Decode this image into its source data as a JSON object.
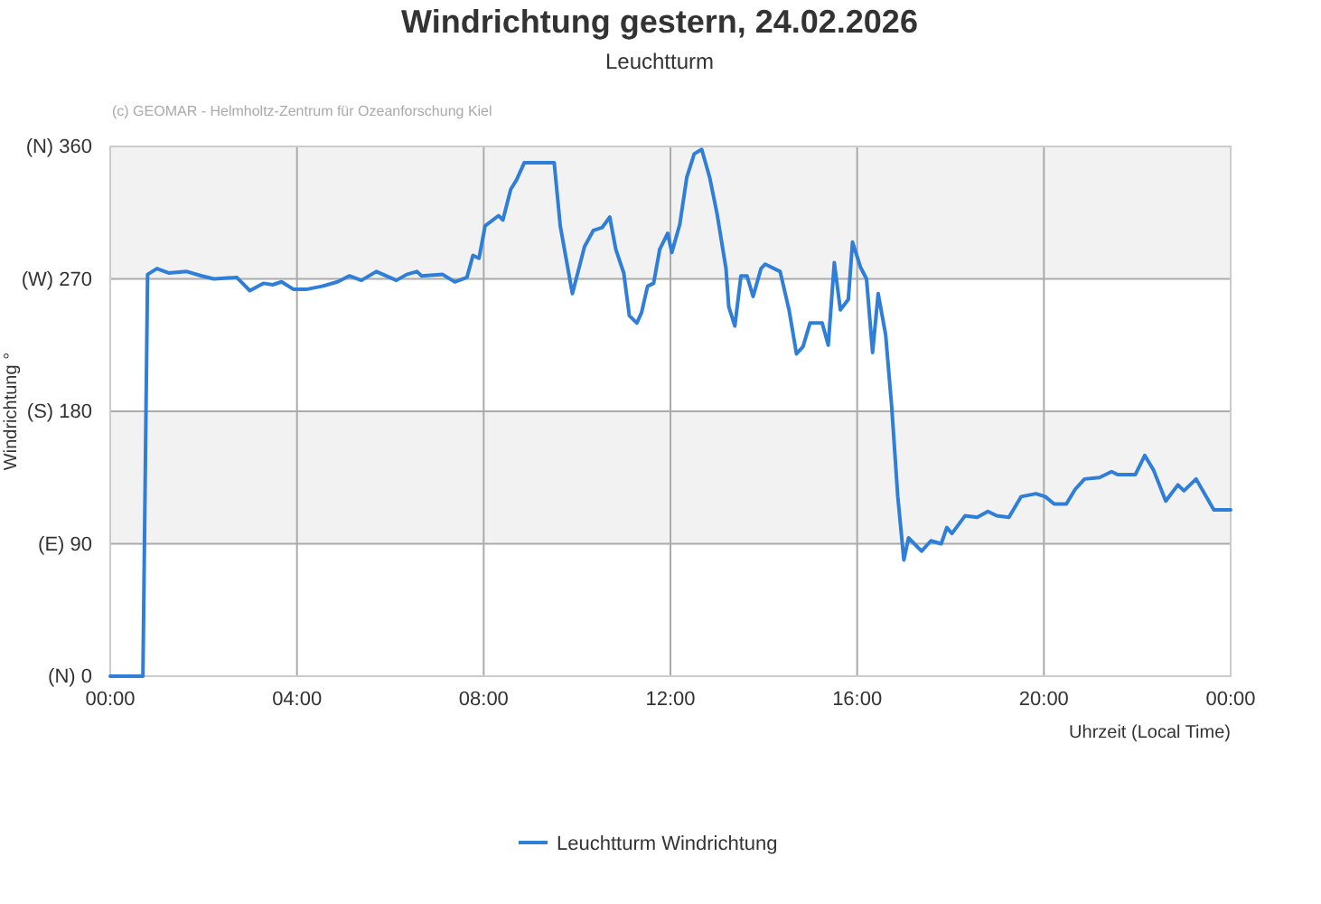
{
  "chart_data": {
    "type": "line",
    "title": "Windrichtung gestern, 24.02.2026",
    "subtitle": "Leuchtturm",
    "xlabel": "Uhrzeit (Local Time)",
    "ylabel": "Windrichtung °",
    "annotations": [
      "(c) GEOMAR - Helmholtz-Zentrum für Ozeanforschung Kiel"
    ],
    "x": [
      0,
      0.7,
      0.8,
      1.0,
      1.25,
      1.64,
      1.96,
      2.22,
      2.71,
      2.99,
      3.28,
      3.48,
      3.67,
      3.92,
      4.22,
      4.54,
      4.87,
      5.12,
      5.38,
      5.7,
      6.13,
      6.35,
      6.57,
      6.67,
      7.12,
      7.38,
      7.64,
      7.77,
      7.9,
      8.03,
      8.32,
      8.41,
      8.58,
      8.7,
      8.87,
      9.51,
      9.64,
      9.9,
      10.16,
      10.35,
      10.54,
      10.7,
      10.83,
      11.0,
      11.12,
      11.28,
      11.38,
      11.51,
      11.64,
      11.77,
      11.94,
      12.03,
      12.2,
      12.35,
      12.51,
      12.67,
      12.84,
      13.0,
      13.19,
      13.25,
      13.38,
      13.51,
      13.64,
      13.77,
      13.94,
      14.03,
      14.35,
      14.54,
      14.7,
      14.84,
      14.99,
      15.25,
      15.38,
      15.51,
      15.64,
      15.81,
      15.9,
      16.07,
      16.2,
      16.33,
      16.45,
      16.61,
      16.74,
      16.87,
      17.0,
      17.1,
      17.38,
      17.58,
      17.8,
      17.92,
      18.03,
      18.31,
      18.57,
      18.8,
      18.99,
      19.25,
      19.51,
      19.83,
      20.03,
      20.22,
      20.48,
      20.67,
      20.87,
      21.19,
      21.45,
      21.58,
      21.96,
      22.16,
      22.35,
      22.61,
      22.87,
      23.0,
      23.26,
      23.64,
      24.0
    ],
    "series": [
      {
        "name": "Leuchtturm Windrichtung",
        "color": "#2f7ed8",
        "values": [
          0,
          0,
          273,
          277,
          274,
          275,
          272,
          270,
          271,
          262,
          267,
          266,
          268,
          263,
          263,
          265,
          268,
          272,
          269,
          275,
          269,
          273,
          275,
          272,
          273,
          268,
          271,
          286,
          284,
          306,
          313,
          310,
          331,
          337,
          349,
          349,
          306,
          260,
          292,
          303,
          305,
          312,
          290,
          274,
          245,
          240,
          247,
          265,
          267,
          290,
          301,
          288,
          307,
          339,
          355,
          358,
          339,
          314,
          277,
          251,
          238,
          272,
          272,
          258,
          277,
          280,
          275,
          249,
          219,
          224,
          240,
          240,
          225,
          281,
          249,
          256,
          295,
          278,
          270,
          220,
          260,
          232,
          183,
          122,
          79,
          94,
          85,
          92,
          90,
          101,
          97,
          109,
          108,
          112,
          109,
          108,
          122,
          124,
          122,
          117,
          117,
          127,
          134,
          135,
          139,
          137,
          137,
          150,
          140,
          119,
          130,
          126,
          134,
          113,
          113
        ]
      }
    ],
    "xlim": [
      0,
      24
    ],
    "xticks": [
      {
        "value": 0,
        "label": "00:00"
      },
      {
        "value": 4,
        "label": "04:00"
      },
      {
        "value": 8,
        "label": "08:00"
      },
      {
        "value": 12,
        "label": "12:00"
      },
      {
        "value": 16,
        "label": "16:00"
      },
      {
        "value": 20,
        "label": "20:00"
      },
      {
        "value": 24,
        "label": "00:00"
      }
    ],
    "ylim": [
      0,
      360
    ],
    "yticks": [
      {
        "value": 0,
        "label": "(N) 0"
      },
      {
        "value": 90,
        "label": "(E) 90"
      },
      {
        "value": 180,
        "label": "(S) 180"
      },
      {
        "value": 270,
        "label": "(W) 270"
      },
      {
        "value": 360,
        "label": "(N) 360"
      }
    ],
    "bands": [
      {
        "axis": "y",
        "from": 90,
        "to": 180,
        "color": "#f2f2f2"
      },
      {
        "axis": "y",
        "from": 270,
        "to": 360,
        "color": "#f2f2f2"
      }
    ],
    "grid": true,
    "legend": "bottom",
    "marker": "none",
    "line_style": "solid"
  }
}
